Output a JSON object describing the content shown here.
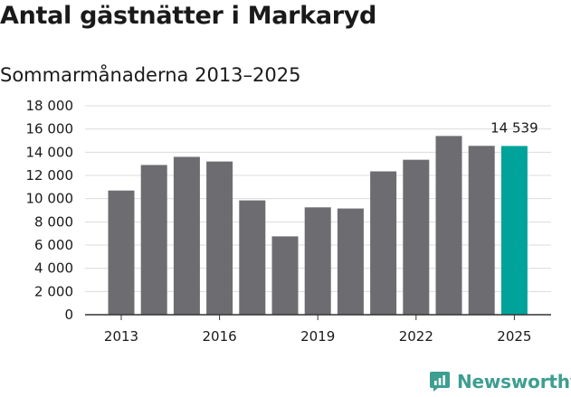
{
  "header": {
    "title": "Antal gästnätter i Markaryd",
    "subtitle": "Sommarmånaderna 2013–2025"
  },
  "brand": {
    "name": "Newsworthy",
    "icon": "newsworthy-logo-icon",
    "color": "#3d9e91"
  },
  "chart_data": {
    "type": "bar",
    "title": "Antal gästnätter i Markaryd",
    "subtitle": "Sommarmånaderna 2013–2025",
    "xlabel": "",
    "ylabel": "",
    "categories": [
      "2013",
      "2014",
      "2015",
      "2016",
      "2017",
      "2018",
      "2019",
      "2020",
      "2021",
      "2022",
      "2023",
      "2024",
      "2025"
    ],
    "values": [
      10700,
      12900,
      13600,
      13200,
      9850,
      6750,
      9250,
      9150,
      12350,
      13350,
      15400,
      14550,
      14539
    ],
    "x_tick_labels": [
      "2013",
      "2016",
      "2019",
      "2022",
      "2025"
    ],
    "y_tick_labels": [
      "0",
      "2 000",
      "4 000",
      "6 000",
      "8 000",
      "10 000",
      "12 000",
      "14 000",
      "16 000",
      "18 000"
    ],
    "ylim": [
      0,
      18000
    ],
    "grid": true,
    "legend": "none",
    "bar_color": "#6d6c71",
    "highlight_color": "#00a39a",
    "highlight_index": 12,
    "data_labels": [
      {
        "index": 12,
        "text": "14 539"
      }
    ]
  }
}
